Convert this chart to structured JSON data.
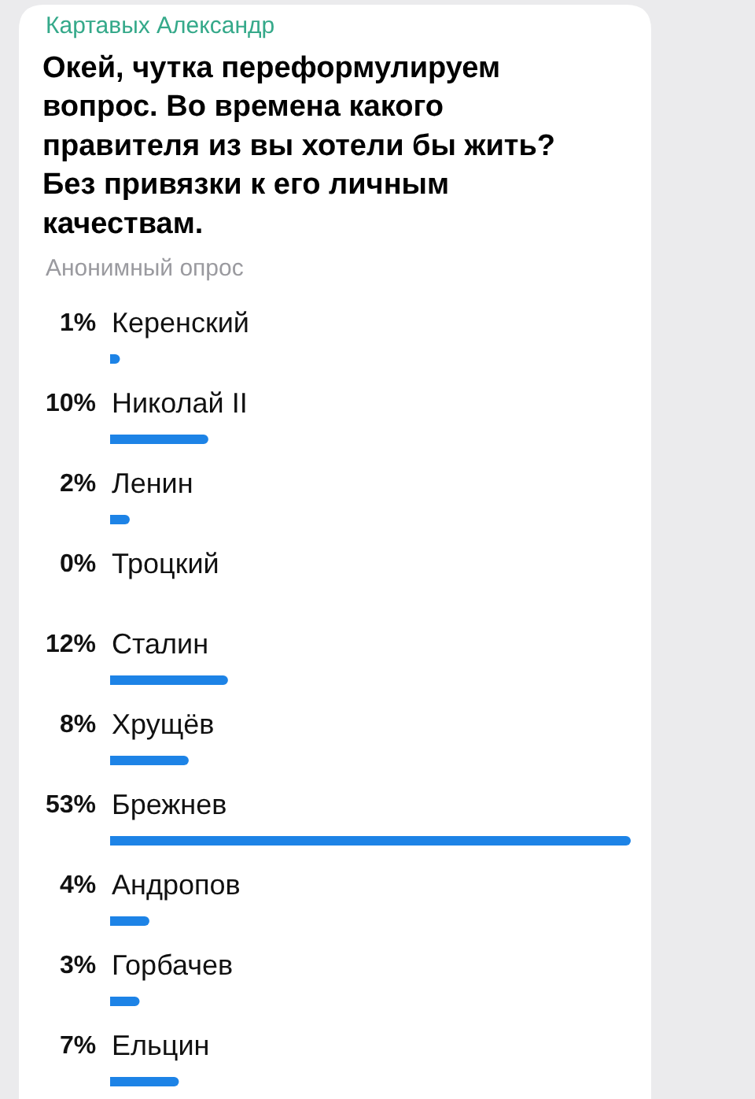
{
  "chart_data": {
    "type": "bar",
    "orientation": "horizontal",
    "title": "Окей, чутка переформулируем вопрос. Во времена какого правителя из вы хотели бы жить? Без привязки к его личным качествам.",
    "subtitle": "Анонимный опрос",
    "annotations": [
      "Картавых Александр"
    ],
    "categories": [
      "Керенский",
      "Николай II",
      "Ленин",
      "Троцкий",
      "Сталин",
      "Хрущёв",
      "Брежнев",
      "Андропов",
      "Горбачев",
      "Ельцин"
    ],
    "values": [
      1,
      10,
      2,
      0,
      12,
      8,
      53,
      4,
      3,
      7
    ],
    "value_labels": [
      "1%",
      "10%",
      "2%",
      "0%",
      "12%",
      "8%",
      "53%",
      "4%",
      "3%",
      "7%"
    ],
    "color": "#1d83e6"
  }
}
